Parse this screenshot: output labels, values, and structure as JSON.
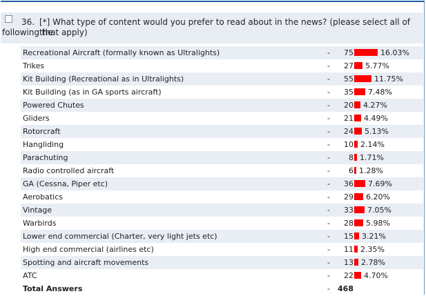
{
  "question": {
    "number": "36.",
    "text": "[*] What type of content would you prefer to read about in the news? (please select all of the",
    "text_continued": "following that apply)"
  },
  "rows": [
    {
      "label": "Recreational Aircraft (formally known as Ultralights)",
      "count": "75",
      "percent": "16.03%",
      "fraction": 0.1603
    },
    {
      "label": "Trikes",
      "count": "27",
      "percent": "5.77%",
      "fraction": 0.0577
    },
    {
      "label": "Kit Building (Recreational as in Ultralights)",
      "count": "55",
      "percent": "11.75%",
      "fraction": 0.1175
    },
    {
      "label": "Kit Building (as in GA sports aircraft)",
      "count": "35",
      "percent": "7.48%",
      "fraction": 0.0748
    },
    {
      "label": "Powered Chutes",
      "count": "20",
      "percent": "4.27%",
      "fraction": 0.0427
    },
    {
      "label": "Gliders",
      "count": "21",
      "percent": "4.49%",
      "fraction": 0.0449
    },
    {
      "label": "Rotorcraft",
      "count": "24",
      "percent": "5.13%",
      "fraction": 0.0513
    },
    {
      "label": "Hangliding",
      "count": "10",
      "percent": "2.14%",
      "fraction": 0.0214
    },
    {
      "label": "Parachuting",
      "count": "8",
      "percent": "1.71%",
      "fraction": 0.0171
    },
    {
      "label": "Radio controlled aircraft",
      "count": "6",
      "percent": "1.28%",
      "fraction": 0.0128
    },
    {
      "label": "GA (Cessna, Piper etc)",
      "count": "36",
      "percent": "7.69%",
      "fraction": 0.0769
    },
    {
      "label": "Aerobatics",
      "count": "29",
      "percent": "6.20%",
      "fraction": 0.062
    },
    {
      "label": "Vintage",
      "count": "33",
      "percent": "7.05%",
      "fraction": 0.0705
    },
    {
      "label": "Warbirds",
      "count": "28",
      "percent": "5.98%",
      "fraction": 0.0598
    },
    {
      "label": "Lower end commercial (Charter, very light jets etc)",
      "count": "15",
      "percent": "3.21%",
      "fraction": 0.0321
    },
    {
      "label": "High end commercial (airlines etc)",
      "count": "11",
      "percent": "2.35%",
      "fraction": 0.0235
    },
    {
      "label": "Spotting and aircraft movements",
      "count": "13",
      "percent": "2.78%",
      "fraction": 0.0278
    },
    {
      "label": "ATC",
      "count": "22",
      "percent": "4.70%",
      "fraction": 0.047
    }
  ],
  "total": {
    "label": "Total Answers",
    "value": "468"
  },
  "separator": "-",
  "colors": {
    "bar": "#ff0000",
    "row_alt": "#e9eef5",
    "header_bg": "#e8edf4",
    "top_border": "#1b5da7"
  }
}
